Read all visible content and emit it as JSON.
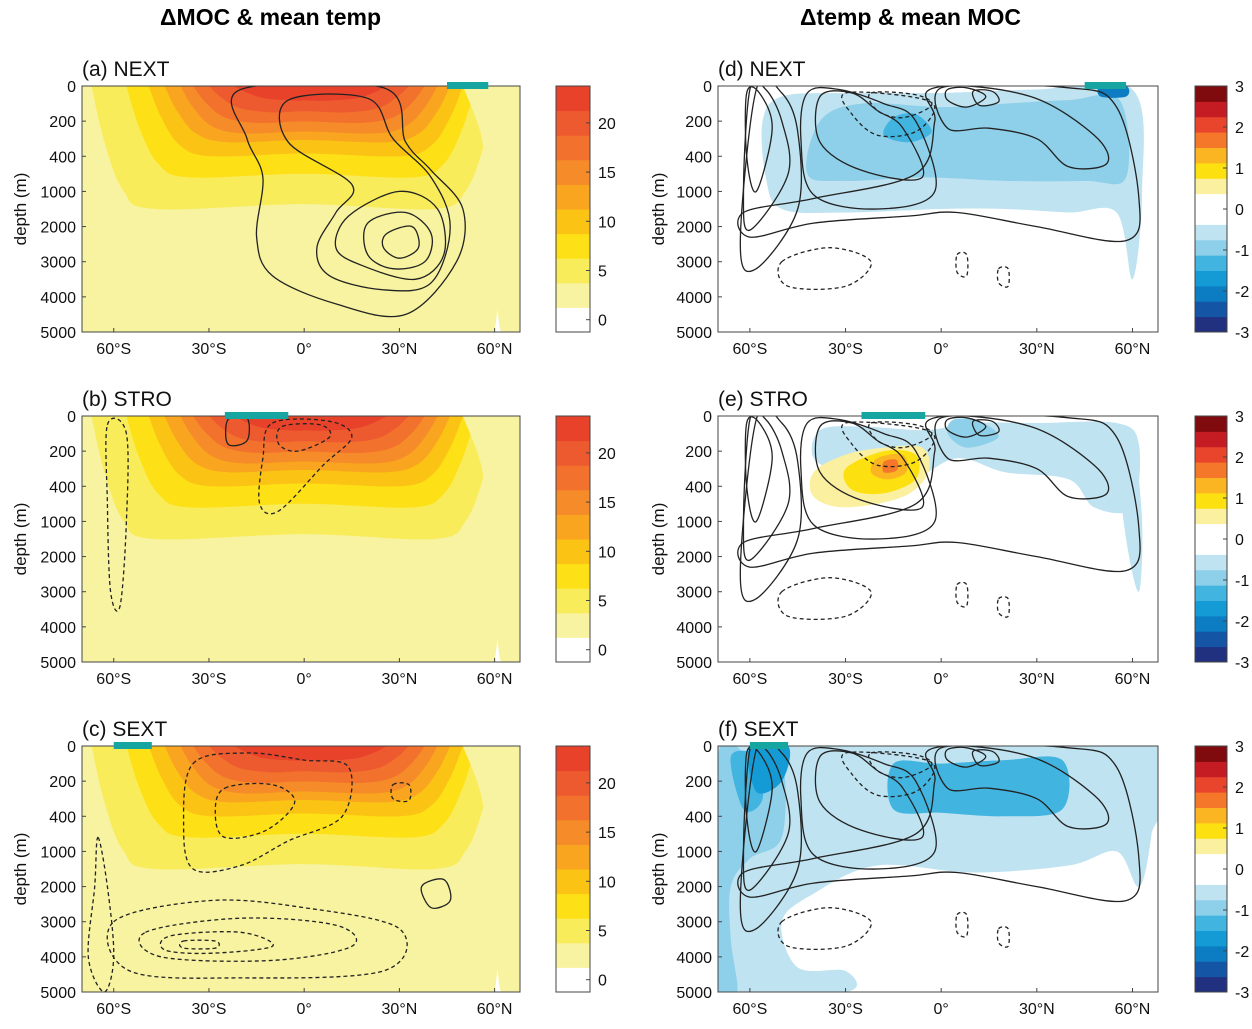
{
  "column_titles": [
    "ΔMOC & mean temp",
    "Δtemp & mean MOC"
  ],
  "chart_data": [
    {
      "type": "heatmap",
      "panel": "(a) NEXT",
      "title": "(a) NEXT",
      "field": "mean temp",
      "contours": "ΔMOC",
      "ylabel": "depth (m)",
      "y_ticks": [
        "0",
        "200",
        "400",
        "1000",
        "2000",
        "3000",
        "4000",
        "5000"
      ],
      "x_ticks": [
        "60°S",
        "30°S",
        "0°",
        "30°N",
        "60°N"
      ],
      "colorbar_ticks": [
        "20",
        "15",
        "10",
        "5",
        "0"
      ],
      "colorbar_levels": [
        0,
        2.5,
        5,
        7.5,
        10,
        12.5,
        15,
        17.5,
        20,
        22.5
      ],
      "forcing_region": [
        45,
        58
      ]
    },
    {
      "type": "heatmap",
      "panel": "(b) STRO",
      "title": "(b) STRO",
      "field": "mean temp",
      "contours": "ΔMOC",
      "ylabel": "depth (m)",
      "y_ticks": [
        "0",
        "200",
        "400",
        "1000",
        "2000",
        "3000",
        "4000",
        "5000"
      ],
      "x_ticks": [
        "60°S",
        "30°S",
        "0°",
        "30°N",
        "60°N"
      ],
      "colorbar_ticks": [
        "20",
        "15",
        "10",
        "5",
        "0"
      ],
      "colorbar_levels": [
        0,
        2.5,
        5,
        7.5,
        10,
        12.5,
        15,
        17.5,
        20,
        22.5
      ],
      "forcing_region": [
        -25,
        -5
      ]
    },
    {
      "type": "heatmap",
      "panel": "(c) SEXT",
      "title": "(c) SEXT",
      "field": "mean temp",
      "contours": "ΔMOC",
      "ylabel": "depth (m)",
      "y_ticks": [
        "0",
        "200",
        "400",
        "1000",
        "2000",
        "3000",
        "4000",
        "5000"
      ],
      "x_ticks": [
        "60°S",
        "30°S",
        "0°",
        "30°N",
        "60°N"
      ],
      "colorbar_ticks": [
        "20",
        "15",
        "10",
        "5",
        "0"
      ],
      "colorbar_levels": [
        0,
        2.5,
        5,
        7.5,
        10,
        12.5,
        15,
        17.5,
        20,
        22.5
      ],
      "forcing_region": [
        -60,
        -48
      ]
    },
    {
      "type": "heatmap",
      "panel": "(d) NEXT",
      "title": "(d) NEXT",
      "field": "Δtemp",
      "contours": "mean MOC",
      "ylabel": "depth (m)",
      "y_ticks": [
        "0",
        "200",
        "400",
        "1000",
        "2000",
        "3000",
        "4000",
        "5000"
      ],
      "x_ticks": [
        "60°S",
        "30°S",
        "0°",
        "30°N",
        "60°N"
      ],
      "colorbar_ticks": [
        "3",
        "2",
        "1",
        "0",
        "-1",
        "-2",
        "-3"
      ],
      "colorbar_range": [
        -3,
        3
      ],
      "forcing_region": [
        45,
        58
      ]
    },
    {
      "type": "heatmap",
      "panel": "(e) STRO",
      "title": "(e) STRO",
      "field": "Δtemp",
      "contours": "mean MOC",
      "ylabel": "depth (m)",
      "y_ticks": [
        "0",
        "200",
        "400",
        "1000",
        "2000",
        "3000",
        "4000",
        "5000"
      ],
      "x_ticks": [
        "60°S",
        "30°S",
        "0°",
        "30°N",
        "60°N"
      ],
      "colorbar_ticks": [
        "3",
        "2",
        "1",
        "0",
        "-1",
        "-2",
        "-3"
      ],
      "colorbar_range": [
        -3,
        3
      ],
      "forcing_region": [
        -25,
        -5
      ]
    },
    {
      "type": "heatmap",
      "panel": "(f) SEXT",
      "title": "(f) SEXT",
      "field": "Δtemp",
      "contours": "mean MOC",
      "ylabel": "depth (m)",
      "y_ticks": [
        "0",
        "200",
        "400",
        "1000",
        "2000",
        "3000",
        "4000",
        "5000"
      ],
      "x_ticks": [
        "60°S",
        "30°S",
        "0°",
        "30°N",
        "60°N"
      ],
      "colorbar_ticks": [
        "3",
        "2",
        "1",
        "0",
        "-1",
        "-2",
        "-3"
      ],
      "colorbar_range": [
        -3,
        3
      ],
      "forcing_region": [
        -60,
        -48
      ]
    }
  ],
  "colors": {
    "temp_scale": [
      "#ffffff",
      "#f7f3a0",
      "#f9ec5b",
      "#fde016",
      "#fbc415",
      "#f9a51f",
      "#f58b29",
      "#f2712d",
      "#ee5a2f",
      "#e8422b"
    ],
    "anom_positive": [
      "#fbf0a0",
      "#fde00f",
      "#fbb422",
      "#f5782a",
      "#e9442c",
      "#c41c22",
      "#7f0b0f"
    ],
    "anom_negative": [
      "#bfe3f0",
      "#8ed0ea",
      "#42b4e0",
      "#149bd5",
      "#0c7dc2",
      "#1455a6",
      "#21307f"
    ],
    "forcing_bar": "#17a5a1"
  }
}
